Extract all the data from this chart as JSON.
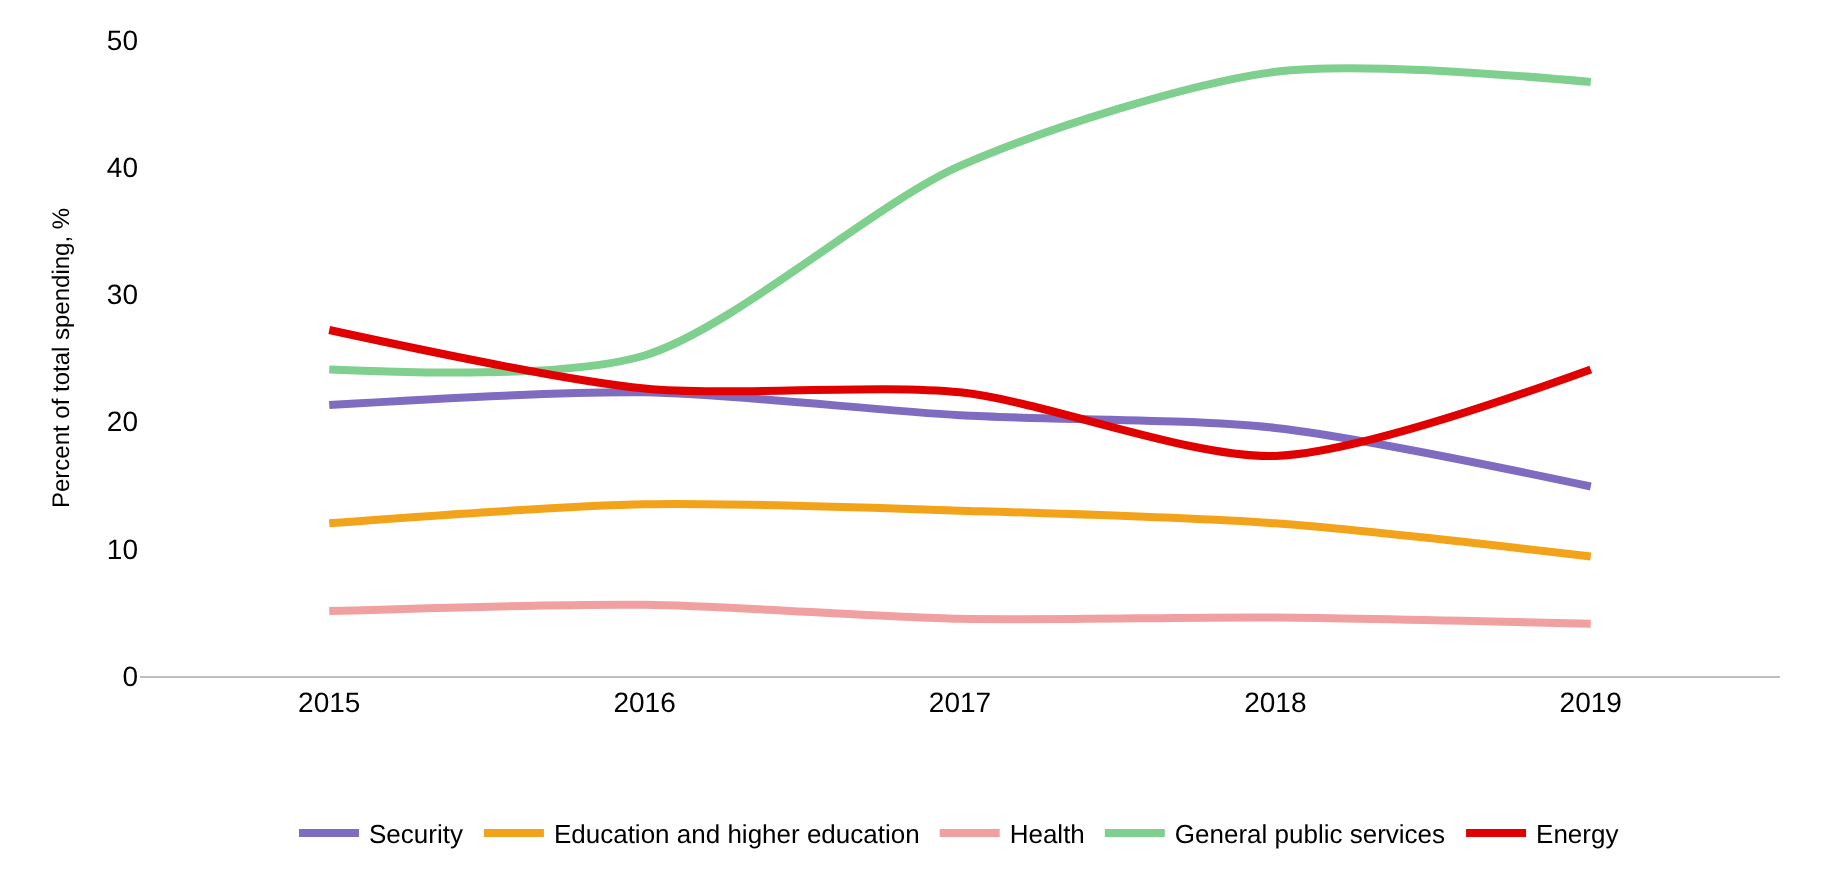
{
  "chart_data": {
    "type": "line",
    "ylabel": "Percent of total spending, %",
    "categories": [
      "2015",
      "2016",
      "2017",
      "2018",
      "2019"
    ],
    "series": [
      {
        "name": "Security",
        "color": "#7f6bbf",
        "values": [
          21.3,
          22.3,
          20.5,
          19.5,
          14.9
        ]
      },
      {
        "name": "Education and higher education",
        "color": "#f2a31a",
        "values": [
          12.0,
          13.5,
          13.0,
          12.0,
          9.4
        ]
      },
      {
        "name": "Health",
        "color": "#f0a0a0",
        "values": [
          5.1,
          5.6,
          4.5,
          4.6,
          4.1
        ]
      },
      {
        "name": "General public services",
        "color": "#7fcf8f",
        "values": [
          24.1,
          25.2,
          40.1,
          47.5,
          46.7
        ]
      },
      {
        "name": "Energy",
        "color": "#e00000",
        "values": [
          27.2,
          22.6,
          22.3,
          17.3,
          24.1
        ]
      }
    ],
    "ylim": [
      0,
      50
    ],
    "yticks": [
      0,
      10,
      20,
      30,
      40,
      50
    ],
    "grid": false,
    "legend": "bottom",
    "marker": "none",
    "line_style": "solid"
  }
}
